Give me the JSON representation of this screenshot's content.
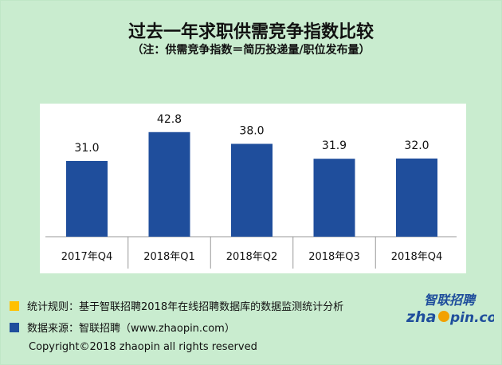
{
  "title": "过去一年求职供需竞争指数比较",
  "subtitle": "（注：供需竞争指数＝简历投递量/职位发布量）",
  "chart_data": {
    "type": "bar",
    "categories": [
      "2017年Q4",
      "2018年Q1",
      "2018年Q2",
      "2018年Q3",
      "2018年Q4"
    ],
    "values": [
      31.0,
      42.8,
      38.0,
      31.9,
      32.0
    ],
    "value_labels": [
      "31.0",
      "42.8",
      "38.0",
      "31.9",
      "32.0"
    ],
    "bar_color": "#1f4e9c",
    "grid": false,
    "ylim": [
      0,
      50
    ]
  },
  "legend": [
    {
      "color": "#ffc000",
      "text": "统计规则：基于智联招聘2018年在线招聘数据库的数据监测统计分析"
    },
    {
      "color": "#1f4e9c",
      "text": "数据来源：智联招聘（www.zhaopin.com）"
    }
  ],
  "logo": {
    "cn": "智联招聘",
    "en_before": "zha",
    "en_after": "pin.com"
  },
  "copyright": "Copyright©2018 zhaopin all rights reserved",
  "colors": {
    "background": "#c9eccf",
    "plot_area": "#ffffff",
    "axis": "#999999"
  }
}
